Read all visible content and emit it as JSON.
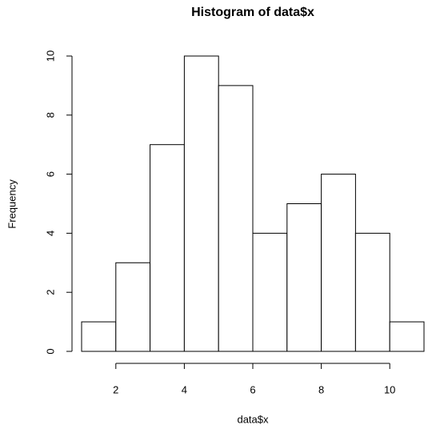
{
  "chart_data": {
    "type": "histogram",
    "title": "Histogram of data$x",
    "x_label": "data$x",
    "y_label": "Frequency",
    "bins": [
      1,
      2,
      3,
      4,
      5,
      6,
      7,
      8,
      9,
      10,
      11
    ],
    "values": [
      1,
      3,
      7,
      10,
      9,
      4,
      5,
      6,
      4,
      1
    ],
    "color": "#ffffff",
    "edgecolor": "#000000",
    "xlim": [
      1,
      11
    ],
    "xticks": [
      2,
      4,
      6,
      8,
      10
    ],
    "ylim": [
      0,
      10
    ],
    "yticks": [
      0,
      2,
      4,
      6,
      8,
      10
    ],
    "grid": false
  }
}
